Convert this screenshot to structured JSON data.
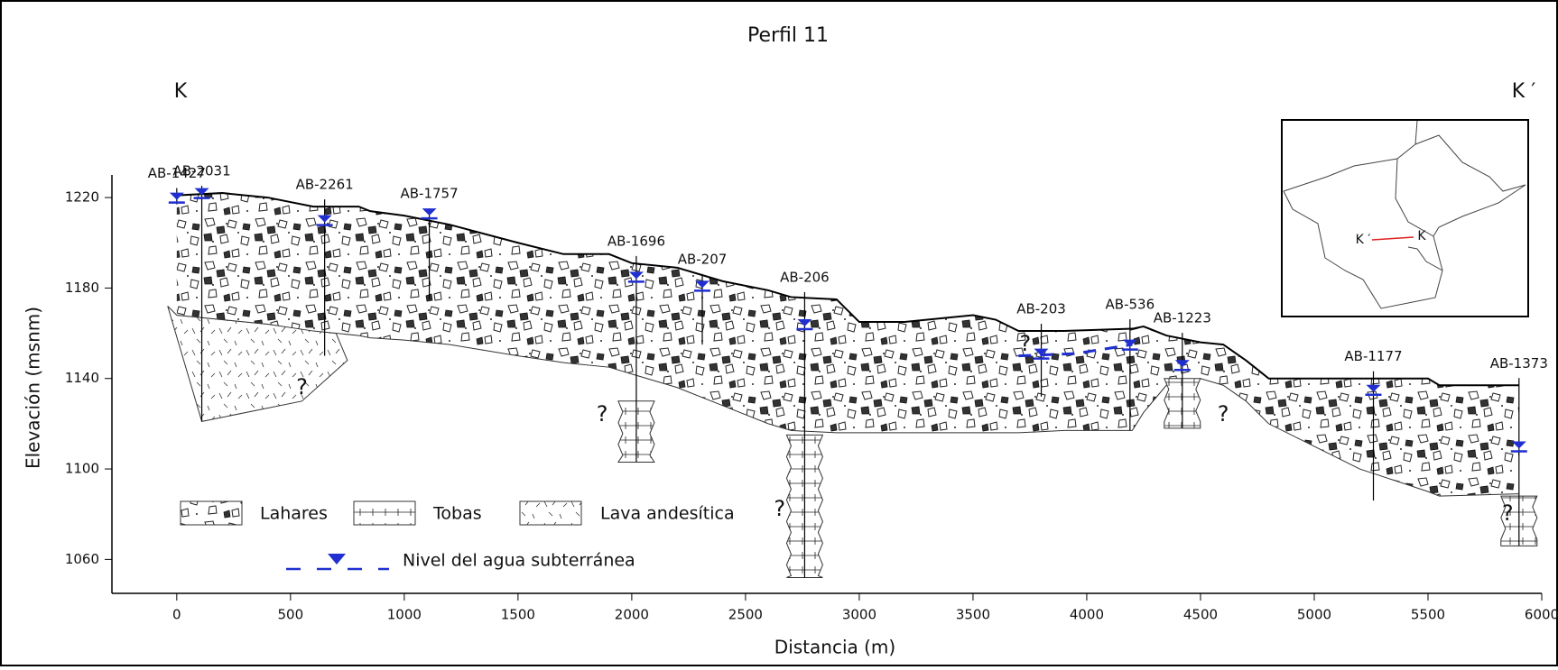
{
  "chart_data": {
    "type": "cross-section",
    "title": "Perfil 11",
    "x_label": "Distancia (m)",
    "y_label": "Elevación (msnm)",
    "section_ends": [
      "K",
      "K ′"
    ],
    "xlim": [
      -285,
      6000
    ],
    "xticks": [
      0,
      500,
      1000,
      1500,
      2000,
      2500,
      3000,
      3500,
      4000,
      4500,
      5000,
      5500,
      6000
    ],
    "ylim": [
      1045,
      1230
    ],
    "yticks": [
      1060,
      1100,
      1140,
      1180,
      1220
    ],
    "profile": {
      "x": [
        0,
        200,
        300,
        400,
        600,
        800,
        850,
        1000,
        1200,
        1500,
        1700,
        1900,
        2000,
        2200,
        2400,
        2600,
        2700,
        2900,
        3000,
        3200,
        3400,
        3500,
        3600,
        3700,
        3900,
        4200,
        4250,
        4350,
        4500,
        4600,
        4700,
        4800,
        5200,
        5500,
        5550,
        5900
      ],
      "top": [
        1221,
        1222,
        1221,
        1220,
        1216,
        1216,
        1214,
        1212,
        1208,
        1200,
        1195,
        1195,
        1191,
        1189,
        1183,
        1179,
        1176,
        1175,
        1165,
        1165,
        1167,
        1168,
        1166,
        1161,
        1161,
        1162,
        1163,
        1159,
        1156,
        1155,
        1148,
        1140,
        1140,
        1140,
        1137,
        1137
      ],
      "base": [
        1168,
        1166,
        1165,
        1164,
        1161,
        1159,
        1158,
        1157,
        1155,
        1150,
        1147,
        1145,
        1142,
        1136,
        1128,
        1120,
        1117,
        1116,
        1116,
        1116,
        1116,
        1116,
        1116,
        1116,
        1117,
        1117,
        1125,
        1137,
        1140,
        1137,
        1130,
        1120,
        1100,
        1090,
        1088,
        1089
      ]
    },
    "lava": {
      "x": [
        -40,
        110,
        550,
        750,
        700,
        400,
        0
      ],
      "y": [
        1172,
        1121,
        1130,
        1148,
        1160,
        1164,
        1168
      ]
    },
    "water_table": {
      "x": [
        3700,
        3950,
        4200
      ],
      "values": [
        1150,
        1151,
        1155
      ]
    },
    "boreholes": [
      {
        "name": "AB-1427",
        "x": 0,
        "top": 1221,
        "bottom": 1217,
        "water": 1219
      },
      {
        "name": "AB-2031",
        "x": 110,
        "top": 1222,
        "bottom": 1121,
        "water": 1221
      },
      {
        "name": "AB-2261",
        "x": 650,
        "top": 1216,
        "bottom": 1150,
        "water": 1209
      },
      {
        "name": "AB-1757",
        "x": 1110,
        "top": 1212,
        "bottom": 1175,
        "water": 1212
      },
      {
        "name": "AB-1696",
        "x": 2020,
        "top": 1191,
        "bottom": 1103,
        "water": 1184,
        "tobas": [
          1130,
          1103
        ]
      },
      {
        "name": "AB-207",
        "x": 2310,
        "top": 1183,
        "bottom": 1155,
        "water": 1180
      },
      {
        "name": "AB-206",
        "x": 2760,
        "top": 1175,
        "bottom": 1052,
        "water": 1163,
        "tobas": [
          1115,
          1052
        ]
      },
      {
        "name": "AB-203",
        "x": 3800,
        "top": 1161,
        "bottom": 1132,
        "water": 1150
      },
      {
        "name": "AB-536",
        "x": 4190,
        "top": 1163,
        "bottom": 1117,
        "water": 1154
      },
      {
        "name": "AB-1223",
        "x": 4420,
        "top": 1157,
        "bottom": 1118,
        "water": 1145,
        "tobas": [
          1140,
          1118
        ]
      },
      {
        "name": "AB-1177",
        "x": 5260,
        "top": 1140,
        "bottom": 1086,
        "water": 1134
      },
      {
        "name": "AB-1373",
        "x": 5900,
        "top": 1137,
        "bottom": 1066,
        "water": 1109,
        "tobas": [
          1088,
          1066
        ]
      }
    ],
    "annotations": [
      {
        "text": "?",
        "x": 550,
        "y": 1136
      },
      {
        "text": "?",
        "x": 1870,
        "y": 1124
      },
      {
        "text": "?",
        "x": 2650,
        "y": 1082
      },
      {
        "text": "?",
        "x": 3730,
        "y": 1155
      },
      {
        "text": "?",
        "x": 4600,
        "y": 1124
      },
      {
        "text": "?",
        "x": 5850,
        "y": 1080
      }
    ],
    "legend": [
      "Lahares",
      "Tobas",
      "Lava andesítica"
    ],
    "water_legend": "Nivel del agua subterránea",
    "water_color": "#1f2fd0",
    "inset_labels": [
      "K ′",
      "K"
    ]
  }
}
